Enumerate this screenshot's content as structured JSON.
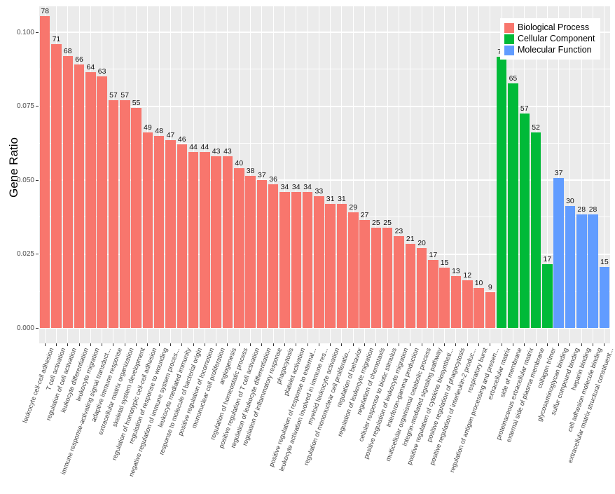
{
  "chart_data": {
    "type": "bar",
    "title": "",
    "xlabel": "",
    "ylabel": "Gene Ratio",
    "ylim": [
      0,
      0.1088
    ],
    "grid": "horizontal major+minor white lines, vertical white line at each bar center",
    "yticks": [
      {
        "value": 0.0,
        "label": "0.000"
      },
      {
        "value": 0.025,
        "label": "0.025"
      },
      {
        "value": 0.05,
        "label": "0.050"
      },
      {
        "value": 0.075,
        "label": "0.075"
      },
      {
        "value": 0.1,
        "label": "0.100"
      }
    ],
    "legend": {
      "position": "top-right",
      "entries": [
        {
          "label": "Biological Process",
          "color": "#F8766D"
        },
        {
          "label": "Cellular Component",
          "color": "#00BA38"
        },
        {
          "label": "Molecular Function",
          "color": "#619CFF"
        }
      ]
    },
    "bars": [
      {
        "label": "leukocyte cell-cell adhesion",
        "count": 78,
        "group": "Biological Process",
        "gene_ratio": 0.1054
      },
      {
        "label": "T cell activation",
        "count": 71,
        "group": "Biological Process",
        "gene_ratio": 0.0959
      },
      {
        "label": "regulation of cell activation",
        "count": 68,
        "group": "Biological Process",
        "gene_ratio": 0.0919
      },
      {
        "label": "leukocyte differentiation",
        "count": 66,
        "group": "Biological Process",
        "gene_ratio": 0.0892
      },
      {
        "label": "leukocyte migration",
        "count": 64,
        "group": "Biological Process",
        "gene_ratio": 0.0865
      },
      {
        "label": "immune response-activating signal transduct...",
        "count": 63,
        "group": "Biological Process",
        "gene_ratio": 0.0851
      },
      {
        "label": "adaptive immune response",
        "count": 57,
        "group": "Biological Process",
        "gene_ratio": 0.077
      },
      {
        "label": "extracellular matrix organization",
        "count": 57,
        "group": "Biological Process",
        "gene_ratio": 0.077
      },
      {
        "label": "skeletal system development",
        "count": 55,
        "group": "Biological Process",
        "gene_ratio": 0.0743
      },
      {
        "label": "regulation of homotypic cell-cell adhesion",
        "count": 49,
        "group": "Biological Process",
        "gene_ratio": 0.0662
      },
      {
        "label": "regulation of response to wounding",
        "count": 48,
        "group": "Biological Process",
        "gene_ratio": 0.0649
      },
      {
        "label": "negative regulation of immune system proces...",
        "count": 47,
        "group": "Biological Process",
        "gene_ratio": 0.0635
      },
      {
        "label": "leukocyte mediated immunity",
        "count": 46,
        "group": "Biological Process",
        "gene_ratio": 0.0622
      },
      {
        "label": "response to molecule of bacterial origin",
        "count": 44,
        "group": "Biological Process",
        "gene_ratio": 0.0595
      },
      {
        "label": "positive regulation of locomotion",
        "count": 44,
        "group": "Biological Process",
        "gene_ratio": 0.0595
      },
      {
        "label": "mononuclear cell proliferation",
        "count": 43,
        "group": "Biological Process",
        "gene_ratio": 0.0581
      },
      {
        "label": "angiogenesis",
        "count": 43,
        "group": "Biological Process",
        "gene_ratio": 0.0581
      },
      {
        "label": "regulation of homeostatic process",
        "count": 40,
        "group": "Biological Process",
        "gene_ratio": 0.0541
      },
      {
        "label": "positive regulation of T cell activation",
        "count": 38,
        "group": "Biological Process",
        "gene_ratio": 0.0514
      },
      {
        "label": "regulation of leukocyte differentiation",
        "count": 37,
        "group": "Biological Process",
        "gene_ratio": 0.05
      },
      {
        "label": "regulation of inflammatory response",
        "count": 36,
        "group": "Biological Process",
        "gene_ratio": 0.0486
      },
      {
        "label": "phagocytosis",
        "count": 34,
        "group": "Biological Process",
        "gene_ratio": 0.0459
      },
      {
        "label": "platelet activation",
        "count": 34,
        "group": "Biological Process",
        "gene_ratio": 0.0459
      },
      {
        "label": "positive regulation of response to external...",
        "count": 34,
        "group": "Biological Process",
        "gene_ratio": 0.0459
      },
      {
        "label": "leukocyte activation involved in immune res...",
        "count": 33,
        "group": "Biological Process",
        "gene_ratio": 0.0446
      },
      {
        "label": "myeloid leukocyte activation",
        "count": 31,
        "group": "Biological Process",
        "gene_ratio": 0.0419
      },
      {
        "label": "regulation of mononuclear cell proliferatio...",
        "count": 31,
        "group": "Biological Process",
        "gene_ratio": 0.0419
      },
      {
        "label": "regulation of behavior",
        "count": 29,
        "group": "Biological Process",
        "gene_ratio": 0.0392
      },
      {
        "label": "regulation of leukocyte migration",
        "count": 27,
        "group": "Biological Process",
        "gene_ratio": 0.0365
      },
      {
        "label": "regulation of chemotaxis",
        "count": 25,
        "group": "Biological Process",
        "gene_ratio": 0.0338
      },
      {
        "label": "cellular response to biotic stimulus",
        "count": 25,
        "group": "Biological Process",
        "gene_ratio": 0.0338
      },
      {
        "label": "positive regulation of leukocyte migration",
        "count": 23,
        "group": "Biological Process",
        "gene_ratio": 0.0311
      },
      {
        "label": "interferon-gamma production",
        "count": 21,
        "group": "Biological Process",
        "gene_ratio": 0.0284
      },
      {
        "label": "multicellular organismal catabolic process",
        "count": 20,
        "group": "Biological Process",
        "gene_ratio": 0.027
      },
      {
        "label": "integrin-mediated signaling pathway",
        "count": 17,
        "group": "Biological Process",
        "gene_ratio": 0.023
      },
      {
        "label": "positive regulation of cytokine biosyntheti...",
        "count": 15,
        "group": "Biological Process",
        "gene_ratio": 0.0203
      },
      {
        "label": "positive regulation of phagocytosis",
        "count": 13,
        "group": "Biological Process",
        "gene_ratio": 0.0176
      },
      {
        "label": "positive regulation of interleukin-2 produc...",
        "count": 12,
        "group": "Biological Process",
        "gene_ratio": 0.0162
      },
      {
        "label": "respiratory burst",
        "count": 10,
        "group": "Biological Process",
        "gene_ratio": 0.0135
      },
      {
        "label": "regulation of antigen processing and presen...",
        "count": 9,
        "group": "Biological Process",
        "gene_ratio": 0.0122
      },
      {
        "label": "extracellular matrix",
        "count": 72,
        "group": "Cellular Component",
        "gene_ratio": 0.0916
      },
      {
        "label": "side of membrane",
        "count": 65,
        "group": "Cellular Component",
        "gene_ratio": 0.0827
      },
      {
        "label": "proteinaceous extracellular matrix",
        "count": 57,
        "group": "Cellular Component",
        "gene_ratio": 0.0725
      },
      {
        "label": "external side of plasma membrane",
        "count": 52,
        "group": "Cellular Component",
        "gene_ratio": 0.0662
      },
      {
        "label": "collagen trimer",
        "count": 17,
        "group": "Cellular Component",
        "gene_ratio": 0.0216
      },
      {
        "label": "glycosaminoglycan binding",
        "count": 37,
        "group": "Molecular Function",
        "gene_ratio": 0.0508
      },
      {
        "label": "sulfur compound binding",
        "count": 30,
        "group": "Molecular Function",
        "gene_ratio": 0.0412
      },
      {
        "label": "heparin binding",
        "count": 28,
        "group": "Molecular Function",
        "gene_ratio": 0.0385
      },
      {
        "label": "cell adhesion molecule binding",
        "count": 28,
        "group": "Molecular Function",
        "gene_ratio": 0.0385
      },
      {
        "label": "extracellular matrix structural constituent...",
        "count": 15,
        "group": "Molecular Function",
        "gene_ratio": 0.0206
      }
    ],
    "layout_colors": {
      "panel_background": "#EBEBEB",
      "gridline": "#FFFFFF",
      "axis_text": "#4D4D4D",
      "value_label": "#111111"
    }
  }
}
